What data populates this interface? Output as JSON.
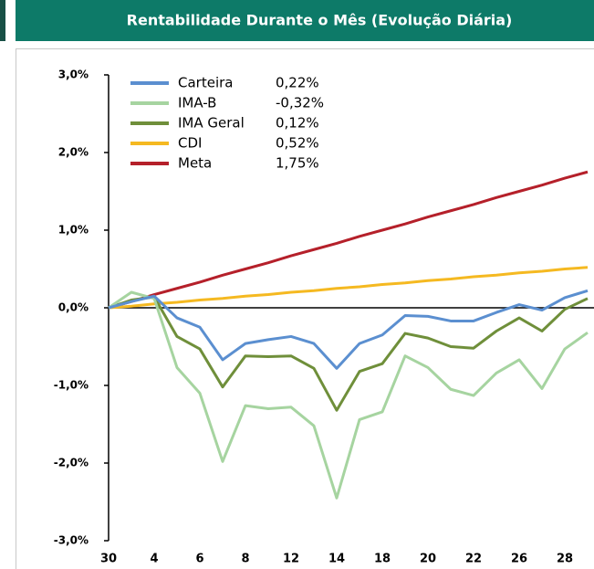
{
  "chart_data": {
    "type": "line",
    "title": "Rentabilidade Durante o Mês (Evolução Diária)",
    "categories": [
      "30",
      null,
      "4",
      null,
      "6",
      null,
      "8",
      null,
      "12",
      null,
      "14",
      null,
      "18",
      null,
      "20",
      null,
      "22",
      null,
      "26",
      null,
      "28",
      null
    ],
    "ylim": [
      -3,
      3
    ],
    "yticks": [
      {
        "value": -3,
        "label": "-3,0%"
      },
      {
        "value": -2,
        "label": "-2,0%"
      },
      {
        "value": -1,
        "label": "-1,0%"
      },
      {
        "value": 0,
        "label": "0,0%"
      },
      {
        "value": 1,
        "label": "1,0%"
      },
      {
        "value": 2,
        "label": "2,0%"
      },
      {
        "value": 3,
        "label": "3,0%"
      }
    ],
    "legend": "top-left",
    "series": [
      {
        "name": "Carteira",
        "color": "#5b8fd0",
        "legend_value": "0,22%",
        "values": [
          0,
          0.08,
          0.15,
          -0.13,
          -0.25,
          -0.67,
          -0.46,
          -0.41,
          -0.37,
          -0.46,
          -0.78,
          -0.46,
          -0.35,
          -0.1,
          -0.11,
          -0.17,
          -0.17,
          -0.06,
          0.04,
          -0.03,
          0.13,
          0.22
        ]
      },
      {
        "name": "IMA-B",
        "color": "#a6d4a0",
        "legend_value": "-0,32%",
        "values": [
          0,
          0.2,
          0.12,
          -0.77,
          -1.1,
          -1.98,
          -1.26,
          -1.3,
          -1.28,
          -1.52,
          -2.45,
          -1.44,
          -1.34,
          -0.62,
          -0.77,
          -1.05,
          -1.13,
          -0.84,
          -0.67,
          -1.04,
          -0.53,
          -0.32
        ]
      },
      {
        "name": "IMA Geral",
        "color": "#6f8f3a",
        "legend_value": "0,12%",
        "values": [
          0,
          0.1,
          0.14,
          -0.37,
          -0.53,
          -1.02,
          -0.62,
          -0.63,
          -0.62,
          -0.78,
          -1.32,
          -0.82,
          -0.72,
          -0.33,
          -0.39,
          -0.5,
          -0.52,
          -0.3,
          -0.13,
          -0.3,
          -0.02,
          0.12
        ]
      },
      {
        "name": "CDI",
        "color": "#f5b921",
        "legend_value": "0,52%",
        "values": [
          0,
          0.02,
          0.05,
          0.07,
          0.1,
          0.12,
          0.15,
          0.17,
          0.2,
          0.22,
          0.25,
          0.27,
          0.3,
          0.32,
          0.35,
          0.37,
          0.4,
          0.42,
          0.45,
          0.47,
          0.5,
          0.52
        ]
      },
      {
        "name": "Meta",
        "color": "#b5202a",
        "legend_value": "1,75%",
        "values": [
          0,
          0.08,
          0.17,
          0.25,
          0.33,
          0.42,
          0.5,
          0.58,
          0.67,
          0.75,
          0.83,
          0.92,
          1.0,
          1.08,
          1.17,
          1.25,
          1.33,
          1.42,
          1.5,
          1.58,
          1.67,
          1.75
        ]
      }
    ]
  }
}
